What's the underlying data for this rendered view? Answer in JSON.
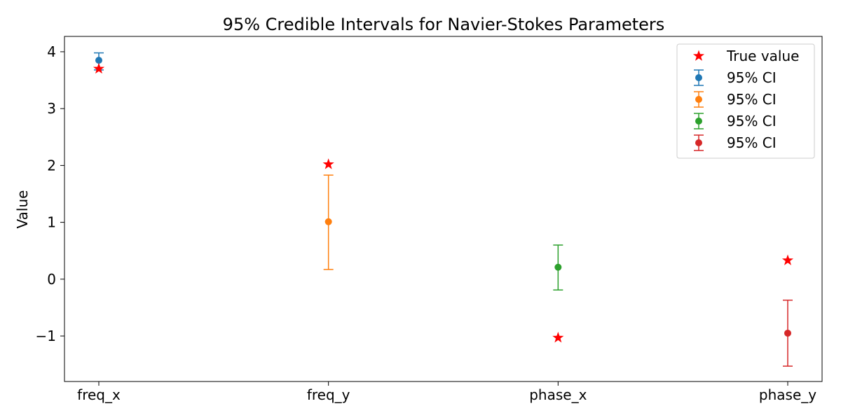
{
  "chart_data": {
    "type": "errorbar",
    "title": "95% Credible Intervals for Navier-Stokes Parameters",
    "xlabel": "",
    "ylabel": "Value",
    "categories": [
      "freq_x",
      "freq_y",
      "phase_x",
      "phase_y"
    ],
    "yticks": [
      -1,
      0,
      1,
      2,
      3,
      4
    ],
    "ytick_labels": [
      "−1",
      "0",
      "1",
      "2",
      "3",
      "4"
    ],
    "ylim": [
      -1.8,
      4.27
    ],
    "grid": false,
    "legend_position": "top-right",
    "true_value_series": {
      "name": "True value",
      "color": "#ff0000",
      "marker": "star",
      "values": [
        3.7,
        2.02,
        -1.03,
        0.33
      ]
    },
    "intervals": [
      {
        "name": "95% CI",
        "category": "freq_x",
        "mean": 3.85,
        "lower": 3.68,
        "upper": 3.98,
        "color": "#1f77b4"
      },
      {
        "name": "95% CI",
        "category": "freq_y",
        "mean": 1.01,
        "lower": 0.17,
        "upper": 1.83,
        "color": "#ff7f0e"
      },
      {
        "name": "95% CI",
        "category": "phase_x",
        "mean": 0.21,
        "lower": -0.19,
        "upper": 0.6,
        "color": "#2ca02c"
      },
      {
        "name": "95% CI",
        "category": "phase_y",
        "mean": -0.95,
        "lower": -1.53,
        "upper": -0.37,
        "color": "#d62728"
      }
    ]
  }
}
